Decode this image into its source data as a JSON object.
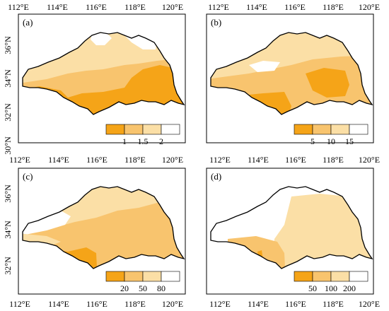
{
  "colors": {
    "c1": "#f5a418",
    "c2": "#f8c46e",
    "c3": "#fbdfa6",
    "c4": "#ffffff",
    "outline": "#000000"
  },
  "axes": {
    "lon_labels_top_left": [
      "112°E",
      "114°E",
      "116°E",
      "118°E",
      "120°E"
    ],
    "lon_labels_top_right": [
      "112°E",
      "114°E",
      "116°E",
      "118°E",
      "120°E"
    ],
    "lon_labels_bottom_left": [
      "112°E",
      "114°E",
      "116°E",
      "118°E",
      "120°E"
    ],
    "lon_labels_bottom_right": [
      "112°E",
      "114°E",
      "116°E",
      "118°E",
      "120°E"
    ],
    "lat_labels_top": [
      "36°N",
      "34°N",
      "32°N",
      "30°N"
    ],
    "lat_labels_bottom": [
      "36°N",
      "34°N",
      "32°N"
    ]
  },
  "panels": [
    {
      "label": "(a)",
      "legend_ticks": [
        "1",
        "1.5",
        "2"
      ]
    },
    {
      "label": "(b)",
      "legend_ticks": [
        "5",
        "10",
        "15"
      ]
    },
    {
      "label": "(c)",
      "legend_ticks": [
        "20",
        "50",
        "80"
      ]
    },
    {
      "label": "(d)",
      "legend_ticks": [
        "50",
        "100",
        "200"
      ]
    }
  ]
}
